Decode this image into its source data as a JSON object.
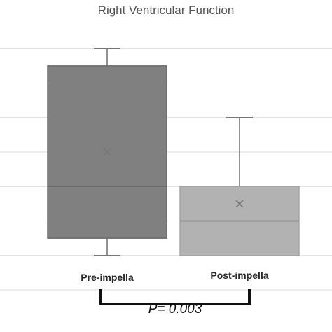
{
  "chart_data": {
    "type": "box",
    "title": "Right Ventricular Function",
    "categories": [
      "Pre-impella",
      "Post-impella"
    ],
    "ylim": [
      0,
      8
    ],
    "grid": true,
    "series": [
      {
        "min": 1,
        "q1": 1.5,
        "median": 3,
        "q3": 6.5,
        "max": 7,
        "mean": 4,
        "color": "#808080",
        "edge": "#6a6a6a"
      },
      {
        "min": 1,
        "q1": 1,
        "median": 2,
        "q3": 3,
        "max": 5,
        "mean": 2.5,
        "color": "#b2b2b2",
        "edge": "#a5a5a5"
      }
    ],
    "annotation": {
      "label_prefix": "P",
      "label_value": "= 0.003"
    }
  }
}
